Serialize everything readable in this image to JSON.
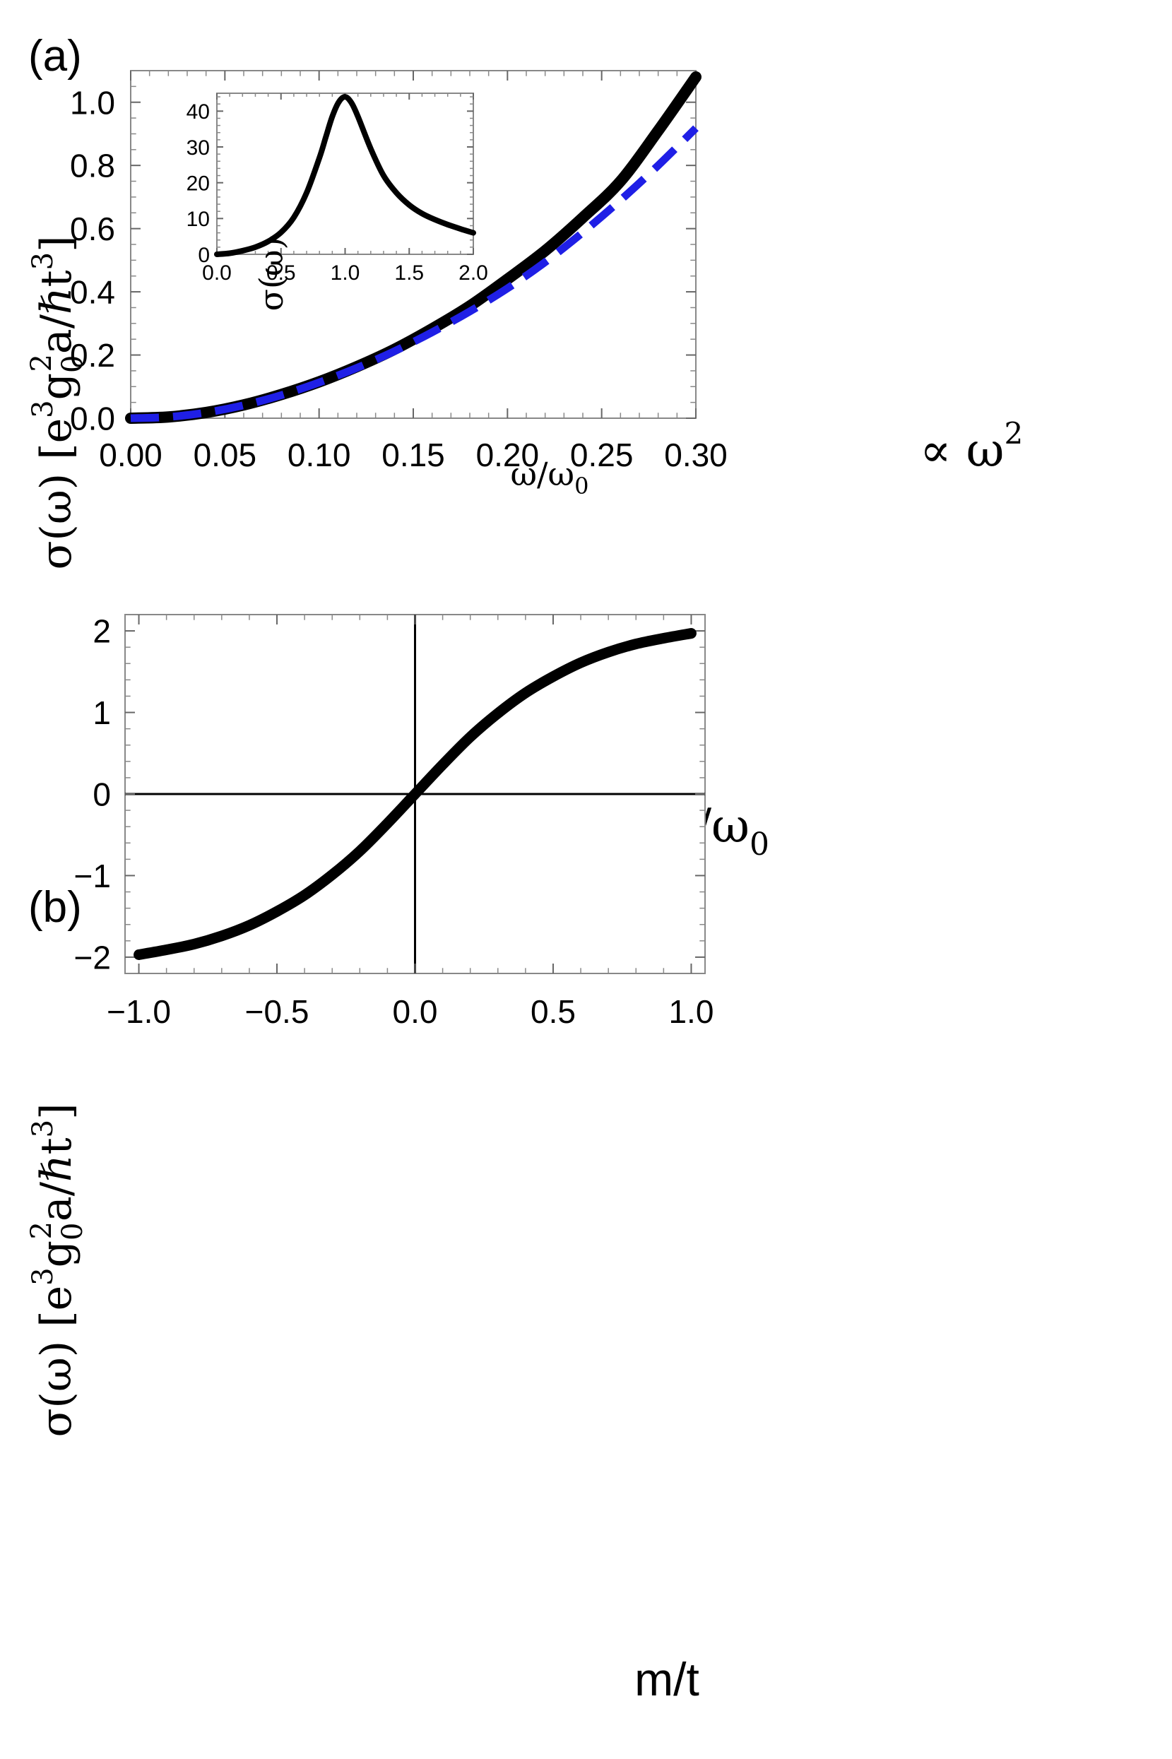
{
  "chart_data": [
    {
      "id": "a",
      "panel_label": "(a)",
      "type": "line",
      "xlabel": {
        "base": "ω/ω",
        "sub": "0"
      },
      "ylabel": {
        "prefix": "σ(ω) [e",
        "sup1": "3",
        "mid": "g",
        "sub1": "0",
        "sup2": "2",
        "mid2": "a/ℏt",
        "sup3": "3",
        "suffix": "]"
      },
      "xlim": [
        0,
        0.3
      ],
      "ylim": [
        0,
        1.1
      ],
      "xticks": [
        0.0,
        0.05,
        0.1,
        0.15,
        0.2,
        0.25,
        0.3
      ],
      "xtick_labels": [
        "0.00",
        "0.05",
        "0.10",
        "0.15",
        "0.20",
        "0.25",
        "0.30"
      ],
      "yticks": [
        0.0,
        0.2,
        0.4,
        0.6,
        0.8,
        1.0
      ],
      "ytick_labels": [
        "0.0",
        "0.2",
        "0.4",
        "0.6",
        "0.8",
        "1.0"
      ],
      "annotation": {
        "prefix": "∝ ω",
        "sup": "2"
      },
      "series": [
        {
          "style": "solid",
          "color": "#000000",
          "x": [
            0,
            0.02,
            0.04,
            0.06,
            0.08,
            0.1,
            0.12,
            0.14,
            0.16,
            0.18,
            0.2,
            0.22,
            0.24,
            0.26,
            0.28,
            0.3
          ],
          "y": [
            0,
            0.004,
            0.018,
            0.042,
            0.075,
            0.115,
            0.163,
            0.218,
            0.283,
            0.355,
            0.44,
            0.53,
            0.635,
            0.75,
            0.91,
            1.08
          ]
        },
        {
          "style": "dashed",
          "color": "#1f1fe6",
          "x": [
            0,
            0.02,
            0.04,
            0.06,
            0.08,
            0.1,
            0.12,
            0.14,
            0.16,
            0.18,
            0.2,
            0.22,
            0.24,
            0.26,
            0.28,
            0.3
          ],
          "y": [
            0,
            0.004,
            0.018,
            0.041,
            0.073,
            0.113,
            0.159,
            0.212,
            0.272,
            0.338,
            0.411,
            0.494,
            0.588,
            0.69,
            0.8,
            0.918
          ]
        }
      ]
    },
    {
      "id": "a-inset",
      "type": "line",
      "xlabel": {
        "base": "ω/ω",
        "sub": "0"
      },
      "ylabel": "σ(ω)",
      "xlim": [
        0,
        2
      ],
      "ylim": [
        0,
        45
      ],
      "xticks": [
        0,
        0.5,
        1,
        1.5,
        2
      ],
      "xtick_labels": [
        "0.0",
        "0.5",
        "1.0",
        "1.5",
        "2.0"
      ],
      "yticks": [
        0,
        10,
        20,
        30,
        40
      ],
      "ytick_labels": [
        "0",
        "10",
        "20",
        "30",
        "40"
      ],
      "series": [
        {
          "style": "solid",
          "color": "#000000",
          "x": [
            0,
            0.1,
            0.2,
            0.3,
            0.4,
            0.5,
            0.6,
            0.7,
            0.8,
            0.85,
            0.9,
            0.95,
            1.0,
            1.05,
            1.1,
            1.2,
            1.3,
            1.4,
            1.5,
            1.6,
            1.7,
            1.8,
            1.9,
            2.0
          ],
          "y": [
            0,
            0.3,
            1.0,
            2.0,
            3.6,
            6.1,
            10.3,
            17.2,
            27.0,
            32.8,
            38.5,
            42.5,
            44.0,
            42.3,
            38.5,
            29.5,
            22.0,
            17.2,
            13.8,
            11.4,
            9.7,
            8.3,
            7.1,
            6.0
          ]
        }
      ]
    },
    {
      "id": "b",
      "panel_label": "(b)",
      "type": "line",
      "xlabel": "m/t",
      "ylabel": {
        "prefix": "σ(ω) [e",
        "sup1": "3",
        "mid": "g",
        "sub1": "0",
        "sup2": "2",
        "mid2": "a/ℏt",
        "sup3": "3",
        "suffix": "]"
      },
      "xlim": [
        -1.05,
        1.05
      ],
      "ylim": [
        -2.2,
        2.2
      ],
      "xticks": [
        -1,
        -0.5,
        0,
        0.5,
        1
      ],
      "xtick_labels": [
        "−1.0",
        "−0.5",
        "0.0",
        "0.5",
        "1.0"
      ],
      "yticks": [
        -2,
        -1,
        0,
        1,
        2
      ],
      "ytick_labels": [
        "−2",
        "−1",
        "0",
        "1",
        "2"
      ],
      "series": [
        {
          "style": "solid",
          "color": "#000000",
          "x": [
            -1,
            -0.9,
            -0.8,
            -0.7,
            -0.6,
            -0.5,
            -0.4,
            -0.3,
            -0.2,
            -0.1,
            0,
            0.1,
            0.2,
            0.3,
            0.4,
            0.5,
            0.6,
            0.7,
            0.8,
            0.9,
            1
          ],
          "y": [
            -1.97,
            -1.91,
            -1.84,
            -1.74,
            -1.61,
            -1.44,
            -1.24,
            -0.99,
            -0.7,
            -0.36,
            0,
            0.36,
            0.7,
            0.99,
            1.24,
            1.44,
            1.61,
            1.74,
            1.84,
            1.91,
            1.97
          ]
        }
      ]
    }
  ]
}
